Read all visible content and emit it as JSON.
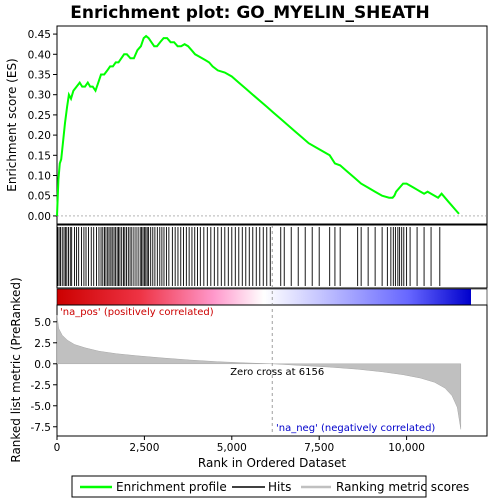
{
  "chart_data": {
    "type": "line",
    "title": "Enrichment plot: GO_MYELIN_SHEATH",
    "xlabel": "Rank in Ordered Dataset",
    "ylabel_top": "Enrichment score (ES)",
    "ylabel_bottom": "Ranked list metric (PreRanked)",
    "x_range": [
      0,
      12300
    ],
    "es_ylim": [
      -0.02,
      0.47
    ],
    "metric_ylim": [
      -8.6,
      7.0
    ],
    "x_ticks": [
      {
        "value": 0,
        "label": "0"
      },
      {
        "value": 2500,
        "label": "2,500"
      },
      {
        "value": 5000,
        "label": "5,000"
      },
      {
        "value": 7500,
        "label": "7,500"
      },
      {
        "value": 10000,
        "label": "10,000"
      }
    ],
    "es_ticks": [
      {
        "value": 0.0,
        "label": "0.00"
      },
      {
        "value": 0.05,
        "label": "0.05"
      },
      {
        "value": 0.1,
        "label": "0.10"
      },
      {
        "value": 0.15,
        "label": "0.15"
      },
      {
        "value": 0.2,
        "label": "0.20"
      },
      {
        "value": 0.25,
        "label": "0.25"
      },
      {
        "value": 0.3,
        "label": "0.30"
      },
      {
        "value": 0.35,
        "label": "0.35"
      },
      {
        "value": 0.4,
        "label": "0.40"
      },
      {
        "value": 0.45,
        "label": "0.45"
      }
    ],
    "metric_ticks": [
      {
        "value": 5.0,
        "label": "5.0"
      },
      {
        "value": 2.5,
        "label": "2.5"
      },
      {
        "value": 0.0,
        "label": "0.0"
      },
      {
        "value": -2.5,
        "label": "-2.5"
      },
      {
        "value": -5.0,
        "label": "-5.0"
      },
      {
        "value": -7.5,
        "label": "-7.5"
      }
    ],
    "enrichment_profile": {
      "name": "Enrichment profile",
      "color": "#00ff00",
      "x": [
        0,
        40,
        80,
        120,
        170,
        230,
        290,
        340,
        400,
        470,
        560,
        650,
        720,
        800,
        880,
        950,
        1020,
        1100,
        1180,
        1260,
        1350,
        1440,
        1520,
        1600,
        1680,
        1760,
        1840,
        1920,
        2000,
        2100,
        2200,
        2300,
        2400,
        2480,
        2550,
        2620,
        2700,
        2780,
        2860,
        2950,
        3050,
        3150,
        3250,
        3350,
        3450,
        3550,
        3650,
        3750,
        3850,
        3950,
        4050,
        4150,
        4250,
        4350,
        4450,
        4600,
        4800,
        5000,
        5200,
        5400,
        5600,
        5800,
        6000,
        6200,
        6400,
        6600,
        6800,
        7000,
        7200,
        7400,
        7600,
        7800,
        7950,
        8100,
        8300,
        8500,
        8700,
        8900,
        9100,
        9300,
        9500,
        9600,
        9650,
        9700,
        9800,
        9900,
        10000,
        10100,
        10200,
        10300,
        10400,
        10500,
        10600,
        10700,
        10800,
        10900,
        11000,
        11100,
        11200,
        11300,
        11400,
        11500
      ],
      "y": [
        0.0,
        0.09,
        0.13,
        0.14,
        0.18,
        0.23,
        0.27,
        0.3,
        0.29,
        0.31,
        0.32,
        0.33,
        0.32,
        0.32,
        0.33,
        0.32,
        0.32,
        0.31,
        0.33,
        0.35,
        0.35,
        0.36,
        0.37,
        0.37,
        0.38,
        0.38,
        0.39,
        0.4,
        0.4,
        0.39,
        0.39,
        0.41,
        0.42,
        0.44,
        0.445,
        0.44,
        0.43,
        0.42,
        0.42,
        0.43,
        0.44,
        0.44,
        0.43,
        0.43,
        0.42,
        0.42,
        0.425,
        0.42,
        0.41,
        0.4,
        0.395,
        0.39,
        0.385,
        0.38,
        0.37,
        0.36,
        0.355,
        0.345,
        0.33,
        0.315,
        0.3,
        0.285,
        0.27,
        0.255,
        0.24,
        0.225,
        0.21,
        0.195,
        0.18,
        0.17,
        0.16,
        0.15,
        0.13,
        0.125,
        0.11,
        0.095,
        0.08,
        0.07,
        0.06,
        0.05,
        0.045,
        0.045,
        0.05,
        0.06,
        0.07,
        0.08,
        0.08,
        0.075,
        0.07,
        0.065,
        0.06,
        0.055,
        0.06,
        0.055,
        0.05,
        0.045,
        0.055,
        0.045,
        0.035,
        0.025,
        0.015,
        0.005
      ]
    },
    "hits": {
      "name": "Hits",
      "color": "#000000",
      "x": [
        20,
        60,
        100,
        150,
        200,
        240,
        280,
        330,
        380,
        420,
        500,
        560,
        620,
        700,
        770,
        830,
        900,
        980,
        1050,
        1130,
        1200,
        1260,
        1310,
        1360,
        1400,
        1450,
        1490,
        1540,
        1580,
        1630,
        1670,
        1720,
        1760,
        1800,
        1850,
        1900,
        1940,
        1990,
        2040,
        2090,
        2140,
        2200,
        2260,
        2320,
        2380,
        2420,
        2460,
        2500,
        2540,
        2580,
        2620,
        2680,
        2740,
        2800,
        2870,
        2940,
        3000,
        3060,
        3130,
        3200,
        3300,
        3380,
        3460,
        3540,
        3620,
        3700,
        3780,
        3860,
        3940,
        4020,
        4100,
        4200,
        4300,
        4400,
        4500,
        4600,
        4700,
        4800,
        4900,
        5000,
        5100,
        5200,
        5300,
        5400,
        5500,
        5600,
        5700,
        5800,
        5900,
        6000,
        6100,
        6400,
        6500,
        6700,
        6900,
        7100,
        7300,
        7500,
        7800,
        7950,
        8100,
        8600,
        8700,
        8900,
        9100,
        9300,
        9450,
        9550,
        9620,
        9680,
        9750,
        9800,
        9860,
        9920,
        10000,
        10100,
        10300,
        10500,
        10700,
        10950
      ],
      "color_strip_positive_label": "'na_pos' (positively correlated)",
      "color_strip_negative_label": "'na_neg' (negatively correlated)"
    },
    "ranking_metric": {
      "name": "Ranking metric scores",
      "color": "#c0c0c0",
      "x": [
        0,
        50,
        150,
        300,
        500,
        800,
        1200,
        1700,
        2300,
        3000,
        3800,
        4600,
        5400,
        6156,
        7000,
        7800,
        8600,
        9300,
        9900,
        10400,
        10800,
        11100,
        11300,
        11450,
        11550
      ],
      "y": [
        5.8,
        4.2,
        3.4,
        2.8,
        2.3,
        1.9,
        1.5,
        1.2,
        0.95,
        0.7,
        0.45,
        0.25,
        0.1,
        0.0,
        -0.2,
        -0.4,
        -0.65,
        -0.95,
        -1.3,
        -1.7,
        -2.2,
        -2.9,
        -3.8,
        -5.2,
        -7.8
      ]
    },
    "zero_cross_label": "Zero cross at 6156",
    "zero_cross": 6156,
    "legend": [
      {
        "label": "Enrichment profile",
        "color": "#00ff00"
      },
      {
        "label": "Hits",
        "color": "#000000"
      },
      {
        "label": "Ranking metric scores",
        "color": "#c0c0c0"
      }
    ],
    "legend_position": "bottom"
  }
}
